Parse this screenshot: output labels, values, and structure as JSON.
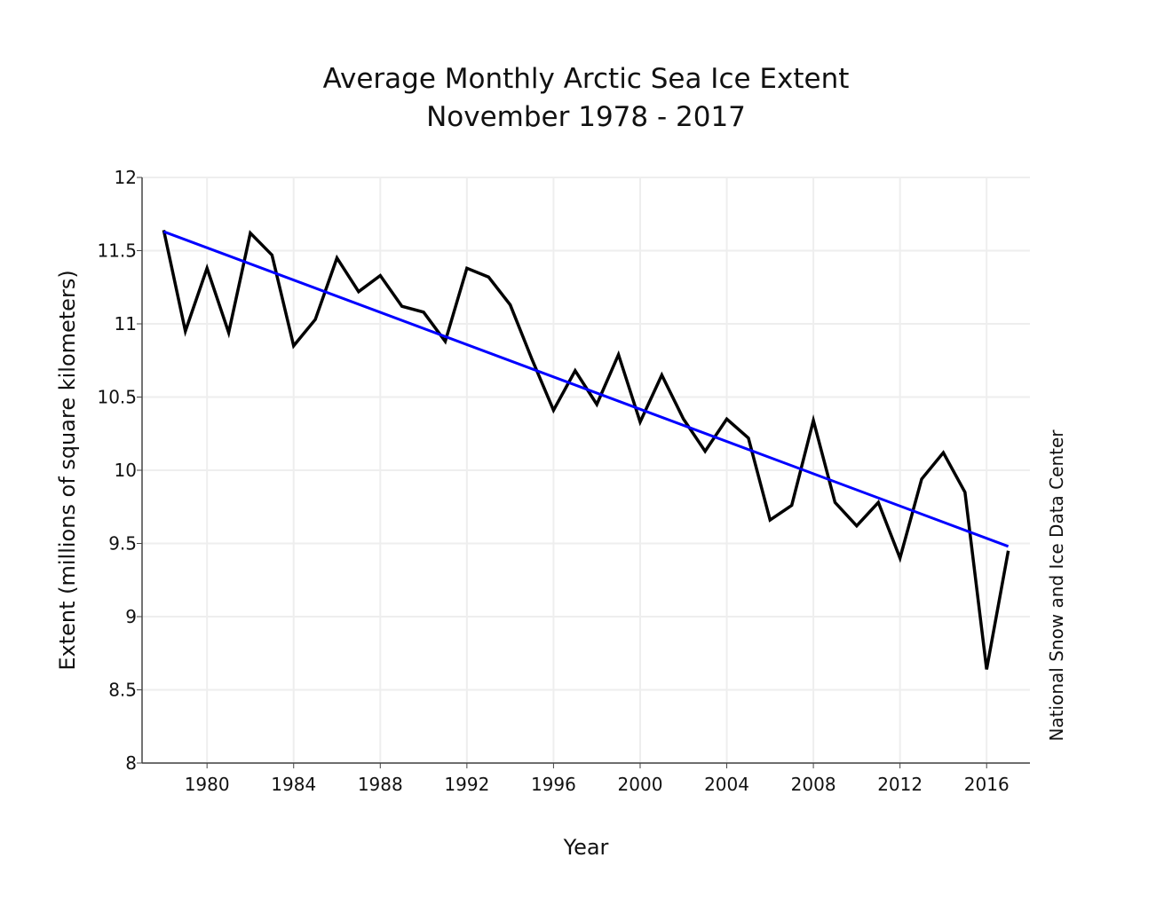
{
  "chart_data": {
    "type": "line",
    "title": "Average Monthly Arctic Sea Ice Extent",
    "subtitle": "November 1978 - 2017",
    "xlabel": "Year",
    "ylabel": "Extent (millions of square kilometers)",
    "source_label": "National Snow and Ice Data Center",
    "xlim": [
      1977,
      2018
    ],
    "ylim": [
      8,
      12
    ],
    "grid": true,
    "x_ticks": [
      1980,
      1984,
      1988,
      1992,
      1996,
      2000,
      2004,
      2008,
      2012,
      2016
    ],
    "y_ticks": [
      8,
      8.5,
      9,
      9.5,
      10,
      10.5,
      11,
      11.5,
      12
    ],
    "colors": {
      "series": "#000000",
      "trend": "#0000ff",
      "grid": "#eeeeee",
      "axis": "#444444"
    },
    "series": [
      {
        "x": [
          1978,
          1979,
          1980,
          1981,
          1982,
          1983,
          1984,
          1985,
          1986,
          1987,
          1988,
          1989,
          1990,
          1991,
          1992,
          1993,
          1994,
          1995,
          1996,
          1997,
          1998,
          1999,
          2000,
          2001,
          2002,
          2003,
          2004,
          2005,
          2006,
          2007,
          2008,
          2009,
          2010,
          2011,
          2012,
          2013,
          2014,
          2015,
          2016,
          2017
        ],
        "values": [
          11.64,
          10.95,
          11.38,
          10.94,
          11.62,
          11.47,
          10.85,
          11.03,
          11.45,
          11.22,
          11.33,
          11.12,
          11.08,
          10.88,
          11.38,
          11.32,
          11.13,
          10.76,
          10.41,
          10.68,
          10.45,
          10.79,
          10.33,
          10.65,
          10.35,
          10.13,
          10.35,
          10.22,
          9.66,
          9.76,
          10.34,
          9.78,
          9.62,
          9.78,
          9.4,
          9.94,
          10.12,
          9.85,
          8.64,
          9.45
        ]
      }
    ],
    "trend": {
      "x": [
        1978,
        2017
      ],
      "values": [
        11.63,
        9.48
      ]
    }
  }
}
